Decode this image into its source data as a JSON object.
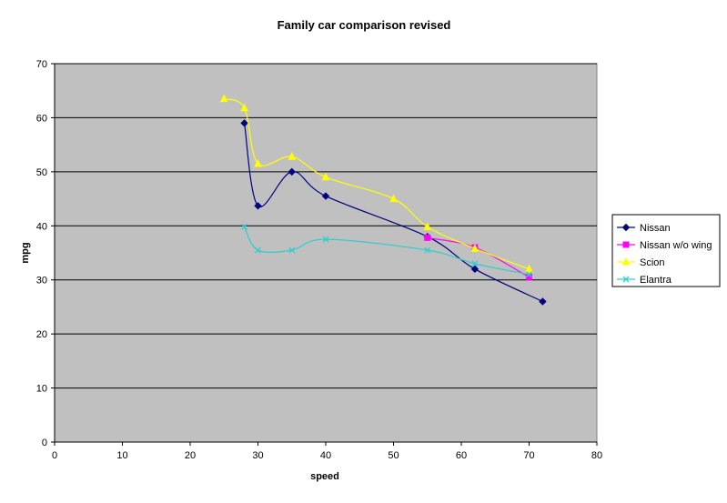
{
  "chart_data": {
    "type": "line",
    "title": "Family car comparison revised",
    "xlabel": "speed",
    "ylabel": "mpg",
    "xlim": [
      0,
      80
    ],
    "ylim": [
      0,
      70
    ],
    "xticks": [
      "0",
      "10",
      "20",
      "30",
      "40",
      "50",
      "60",
      "70",
      "80"
    ],
    "yticks": [
      "0",
      "10",
      "20",
      "30",
      "40",
      "50",
      "60",
      "70"
    ],
    "grid": "horizontal major gridlines",
    "plot_background": "#c0c0c0",
    "legend_position": "right",
    "smoothed": true,
    "series": [
      {
        "name": "Nissan",
        "color": "#000080",
        "marker": "diamond",
        "points": [
          [
            28,
            59
          ],
          [
            30,
            43.7
          ],
          [
            35,
            50
          ],
          [
            40,
            45.5
          ],
          [
            55,
            38
          ],
          [
            62,
            32
          ],
          [
            72,
            26
          ]
        ]
      },
      {
        "name": "Nissan w/o wing",
        "color": "#ff00ff",
        "marker": "square",
        "points": [
          [
            55,
            37.8
          ],
          [
            62,
            36
          ],
          [
            70,
            30.5
          ]
        ]
      },
      {
        "name": "Scion",
        "color": "#ffff00",
        "marker": "triangle",
        "points": [
          [
            25,
            63.5
          ],
          [
            28,
            61.8
          ],
          [
            30,
            51.5
          ],
          [
            35,
            52.8
          ],
          [
            40,
            49
          ],
          [
            50,
            45
          ],
          [
            55,
            39.8
          ],
          [
            62,
            35.8
          ],
          [
            70,
            32
          ]
        ]
      },
      {
        "name": "Elantra",
        "color": "#33cccc",
        "marker": "x",
        "points": [
          [
            28,
            39.8
          ],
          [
            30,
            35.5
          ],
          [
            35,
            35.5
          ],
          [
            40,
            37.5
          ],
          [
            55,
            35.5
          ],
          [
            62,
            33
          ],
          [
            70,
            31
          ]
        ]
      }
    ]
  }
}
